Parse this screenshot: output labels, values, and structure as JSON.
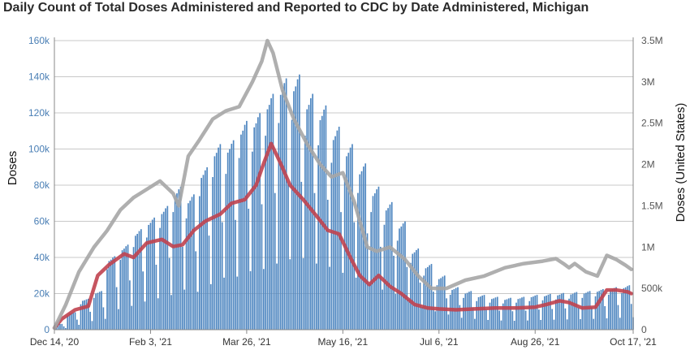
{
  "chart_data": {
    "type": "bar",
    "title": "Daily Count of Total Doses Administered and Reported to CDC by Date Administered, Michigan",
    "ylabel": "Doses",
    "y2label": "Doses (United States)",
    "ylim": [
      0,
      160000
    ],
    "y2lim": [
      0,
      3500000
    ],
    "y_ticks": [
      "0",
      "20k",
      "40k",
      "60k",
      "80k",
      "100k",
      "120k",
      "140k",
      "160k"
    ],
    "y2_ticks": [
      "0",
      "500k",
      "1M",
      "1.5M",
      "2M",
      "2.5M",
      "3M",
      "3.5M"
    ],
    "x_ticks": [
      {
        "date": "2020-12-14",
        "label": "Dec 14, '20"
      },
      {
        "date": "2021-02-03",
        "label": "Feb 3, '21"
      },
      {
        "date": "2021-03-26",
        "label": "Mar 26, '21"
      },
      {
        "date": "2021-05-16",
        "label": "May 16, '21"
      },
      {
        "date": "2021-07-06",
        "label": "Jul 6, '21"
      },
      {
        "date": "2021-08-26",
        "label": "Aug 26, '21"
      },
      {
        "date": "2021-10-17",
        "label": "Oct 17, '21"
      }
    ],
    "x_range": [
      "2020-12-14",
      "2021-10-17"
    ],
    "grid": true,
    "series": [
      {
        "type": "bar",
        "color": "#4e86c0",
        "weekly_start": "2020-12-14",
        "weekday_factors": [
          0.88,
          1.0,
          1.02,
          1.05,
          1.07,
          0.62,
          0.3
        ],
        "weekly_values": [
          3000,
          9000,
          16000,
          20000,
          38000,
          44000,
          52000,
          58000,
          64000,
          74000,
          70000,
          84000,
          96000,
          98000,
          108000,
          112000,
          122000,
          130000,
          132000,
          122000,
          116000,
          105000,
          96000,
          86000,
          74000,
          66000,
          56000,
          42000,
          34000,
          28000,
          22000,
          20000,
          18000,
          17000,
          16500,
          17000,
          18000,
          18500,
          19000,
          19500,
          20000,
          21000,
          22000,
          23000,
          24000,
          24000,
          24000,
          24000,
          23000,
          25000,
          30000,
          29000,
          25000
        ]
      },
      {
        "type": "line",
        "name_axis": "left",
        "color": "#c0424f",
        "x": [
          "2020-12-14",
          "2020-12-18",
          "2020-12-25",
          "2021-01-01",
          "2021-01-06",
          "2021-01-12",
          "2021-01-20",
          "2021-01-25",
          "2021-02-01",
          "2021-02-09",
          "2021-02-15",
          "2021-02-20",
          "2021-02-26",
          "2021-03-04",
          "2021-03-12",
          "2021-03-18",
          "2021-03-25",
          "2021-03-31",
          "2021-04-04",
          "2021-04-08",
          "2021-04-13",
          "2021-04-18",
          "2021-04-25",
          "2021-05-02",
          "2021-05-08",
          "2021-05-14",
          "2021-05-20",
          "2021-05-25",
          "2021-05-30",
          "2021-06-04",
          "2021-06-10",
          "2021-06-16",
          "2021-06-23",
          "2021-06-30",
          "2021-07-06",
          "2021-07-15",
          "2021-07-25",
          "2021-08-05",
          "2021-08-16",
          "2021-08-26",
          "2021-09-01",
          "2021-09-08",
          "2021-09-13",
          "2021-09-20",
          "2021-09-27",
          "2021-10-03",
          "2021-10-08",
          "2021-10-14",
          "2021-10-16"
        ],
        "values": [
          1000,
          6000,
          11000,
          13000,
          30000,
          36000,
          42000,
          40000,
          48000,
          50000,
          46000,
          47000,
          55000,
          60000,
          64000,
          70000,
          72000,
          80000,
          92000,
          103000,
          92000,
          80000,
          72000,
          63000,
          55000,
          53000,
          40000,
          30000,
          25000,
          30000,
          24000,
          20000,
          14000,
          12000,
          11500,
          11000,
          11500,
          12000,
          12000,
          12500,
          14000,
          16000,
          15000,
          12000,
          12500,
          22000,
          22000,
          21000,
          20000
        ]
      },
      {
        "type": "line",
        "name_axis": "right",
        "color": "#a6a6a6",
        "x": [
          "2020-12-14",
          "2020-12-20",
          "2020-12-27",
          "2021-01-04",
          "2021-01-11",
          "2021-01-18",
          "2021-01-25",
          "2021-02-01",
          "2021-02-08",
          "2021-02-15",
          "2021-02-18",
          "2021-02-23",
          "2021-03-01",
          "2021-03-08",
          "2021-03-15",
          "2021-03-22",
          "2021-03-29",
          "2021-04-03",
          "2021-04-06",
          "2021-04-09",
          "2021-04-14",
          "2021-04-20",
          "2021-04-27",
          "2021-05-04",
          "2021-05-10",
          "2021-05-16",
          "2021-05-22",
          "2021-05-29",
          "2021-06-03",
          "2021-06-10",
          "2021-06-18",
          "2021-06-25",
          "2021-07-02",
          "2021-07-10",
          "2021-07-20",
          "2021-07-30",
          "2021-08-10",
          "2021-08-20",
          "2021-08-30",
          "2021-09-06",
          "2021-09-10",
          "2021-09-13",
          "2021-09-16",
          "2021-09-22",
          "2021-09-28",
          "2021-10-03",
          "2021-10-08",
          "2021-10-13",
          "2021-10-16"
        ],
        "values": [
          20000,
          300000,
          700000,
          1000000,
          1200000,
          1450000,
          1600000,
          1700000,
          1800000,
          1650000,
          1500000,
          2100000,
          2300000,
          2550000,
          2650000,
          2700000,
          3000000,
          3250000,
          3500000,
          3350000,
          2900000,
          2550000,
          2250000,
          2000000,
          1850000,
          1900000,
          1550000,
          1000000,
          950000,
          1000000,
          850000,
          650000,
          500000,
          500000,
          600000,
          650000,
          750000,
          800000,
          830000,
          860000,
          800000,
          750000,
          800000,
          700000,
          650000,
          900000,
          850000,
          780000,
          730000
        ]
      }
    ]
  }
}
